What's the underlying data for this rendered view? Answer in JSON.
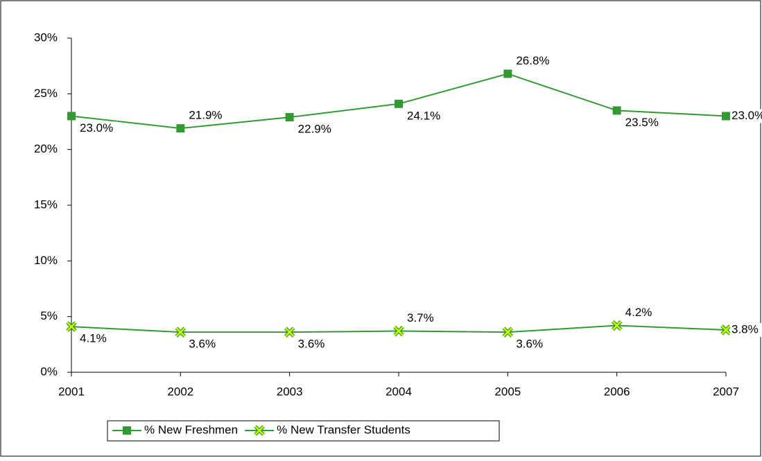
{
  "chart_data": {
    "type": "line",
    "categories": [
      "2001",
      "2002",
      "2003",
      "2004",
      "2005",
      "2006",
      "2007"
    ],
    "series": [
      {
        "name": "% New Freshmen",
        "color": "#339933",
        "marker": "square",
        "values": [
          23.0,
          21.9,
          22.9,
          24.1,
          26.8,
          23.5,
          23.0
        ],
        "value_labels": [
          "23.0%",
          "21.9%",
          "22.9%",
          "24.1%",
          "26.8%",
          "23.5%",
          "23.0%"
        ]
      },
      {
        "name": "% New Transfer Students",
        "color": "#339933",
        "marker_fill": "#ccff00",
        "marker": "x",
        "values": [
          4.1,
          3.6,
          3.6,
          3.7,
          3.6,
          4.2,
          3.8
        ],
        "value_labels": [
          "4.1%",
          "3.6%",
          "3.6%",
          "3.7%",
          "3.6%",
          "4.2%",
          "3.8%"
        ]
      }
    ],
    "ylim": [
      0,
      30
    ],
    "yticks": [
      {
        "value": 0,
        "label": "0%"
      },
      {
        "value": 5,
        "label": "5%"
      },
      {
        "value": 10,
        "label": "10%"
      },
      {
        "value": 15,
        "label": "15%"
      },
      {
        "value": 20,
        "label": "20%"
      },
      {
        "value": 25,
        "label": "25%"
      },
      {
        "value": 30,
        "label": "30%"
      }
    ],
    "grid": false,
    "legend": "bottom"
  }
}
